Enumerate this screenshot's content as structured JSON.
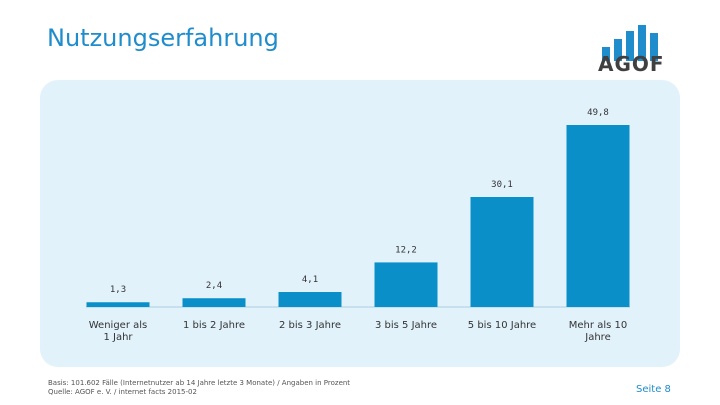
{
  "title": "Nutzungserfahrung",
  "logo": {
    "text": "AGOF",
    "icon": "bar-logo-icon",
    "color": "#1f8ccc"
  },
  "chart_data": {
    "type": "bar",
    "categories": [
      "Weniger als 1 Jahr",
      "1 bis 2 Jahre",
      "2 bis 3 Jahre",
      "3 bis 5 Jahre",
      "5 bis 10 Jahre",
      "Mehr als 10 Jahre"
    ],
    "values": [
      1.3,
      2.4,
      4.1,
      12.2,
      30.1,
      49.8
    ],
    "value_labels": [
      "1,3",
      "2,4",
      "4,1",
      "12,2",
      "30,1",
      "49,8"
    ],
    "ylim": [
      0,
      49.8
    ],
    "grid": false,
    "legend": "none",
    "bar_color": "#0a8fc8",
    "title": "",
    "xlabel": "",
    "ylabel": ""
  },
  "footnote": {
    "line1": "Basis: 101.602 Fälle (Internetnutzer ab 14 Jahre letzte 3 Monate) / Angaben in Prozent",
    "line2": "Quelle: AGOF e. V. / internet facts 2015-02"
  },
  "page_number": "Seite 8"
}
